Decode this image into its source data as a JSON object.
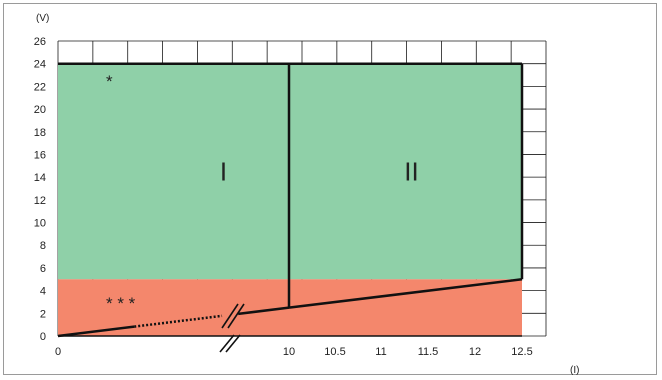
{
  "chart_data": {
    "type": "area",
    "title": "",
    "y_unit": "(V)",
    "x_unit": "(I)",
    "ylim": [
      0,
      26
    ],
    "y_ticks": [
      "0",
      "2",
      "4",
      "6",
      "8",
      "10",
      "12",
      "14",
      "16",
      "18",
      "20",
      "22",
      "24",
      "26"
    ],
    "x_ticks": [
      "0",
      "10",
      "10.5",
      "11",
      "11.5",
      "12",
      "12.5"
    ],
    "grid": true,
    "regions": [
      {
        "label": "I",
        "color": "#8fd0a8",
        "x_from": "0",
        "x_to": "10",
        "y_from": 5,
        "y_to": 24
      },
      {
        "label": "II",
        "color": "#8fd0a8",
        "x_from": "10",
        "x_to": "12.5",
        "y_from": 5,
        "y_to": 24
      },
      {
        "label": "* * *",
        "color": "#f4876c",
        "x_from": "0",
        "x_to": "12.5",
        "y_from": 0,
        "y_to": 5
      }
    ],
    "marks": {
      "single_star": "*",
      "triple_star": "* * *"
    },
    "boundary_line": {
      "points": [
        {
          "x": "0",
          "y": 0
        },
        {
          "x": "10",
          "y": 2.5
        },
        {
          "x": "12.5",
          "y": 5
        }
      ],
      "note_axis_break": true
    }
  }
}
